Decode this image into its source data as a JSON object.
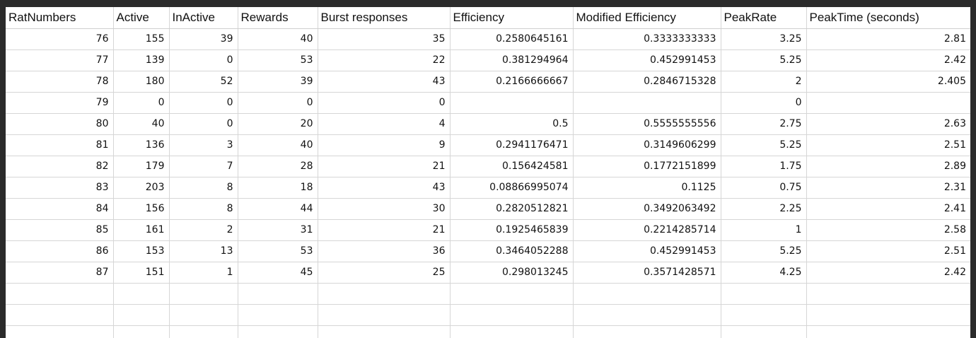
{
  "sheet": {
    "columns": [
      "RatNumbers",
      "Active",
      "InActive",
      "Rewards",
      "Burst responses",
      "Efficiency",
      "Modified Efficiency",
      "PeakRate",
      "PeakTime (seconds)"
    ],
    "rows": [
      [
        "76",
        "155",
        "39",
        "40",
        "35",
        "0.2580645161",
        "0.3333333333",
        "3.25",
        "2.81"
      ],
      [
        "77",
        "139",
        "0",
        "53",
        "22",
        "0.381294964",
        "0.452991453",
        "5.25",
        "2.42"
      ],
      [
        "78",
        "180",
        "52",
        "39",
        "43",
        "0.2166666667",
        "0.2846715328",
        "2",
        "2.405"
      ],
      [
        "79",
        "0",
        "0",
        "0",
        "0",
        "",
        "",
        "0",
        ""
      ],
      [
        "80",
        "40",
        "0",
        "20",
        "4",
        "0.5",
        "0.5555555556",
        "2.75",
        "2.63"
      ],
      [
        "81",
        "136",
        "3",
        "40",
        "9",
        "0.2941176471",
        "0.3149606299",
        "5.25",
        "2.51"
      ],
      [
        "82",
        "179",
        "7",
        "28",
        "21",
        "0.156424581",
        "0.1772151899",
        "1.75",
        "2.89"
      ],
      [
        "83",
        "203",
        "8",
        "18",
        "43",
        "0.08866995074",
        "0.1125",
        "0.75",
        "2.31"
      ],
      [
        "84",
        "156",
        "8",
        "44",
        "30",
        "0.2820512821",
        "0.3492063492",
        "2.25",
        "2.41"
      ],
      [
        "85",
        "161",
        "2",
        "31",
        "21",
        "0.1925465839",
        "0.2214285714",
        "1",
        "2.58"
      ],
      [
        "86",
        "153",
        "13",
        "53",
        "36",
        "0.3464052288",
        "0.452991453",
        "5.25",
        "2.51"
      ],
      [
        "87",
        "151",
        "1",
        "45",
        "25",
        "0.298013245",
        "0.3571428571",
        "4.25",
        "2.42"
      ],
      [
        "",
        "",
        "",
        "",
        "",
        "",
        "",
        "",
        ""
      ],
      [
        "",
        "",
        "",
        "",
        "",
        "",
        "",
        "",
        ""
      ],
      [
        "",
        "",
        "",
        "",
        "",
        "",
        "",
        "",
        ""
      ]
    ]
  }
}
